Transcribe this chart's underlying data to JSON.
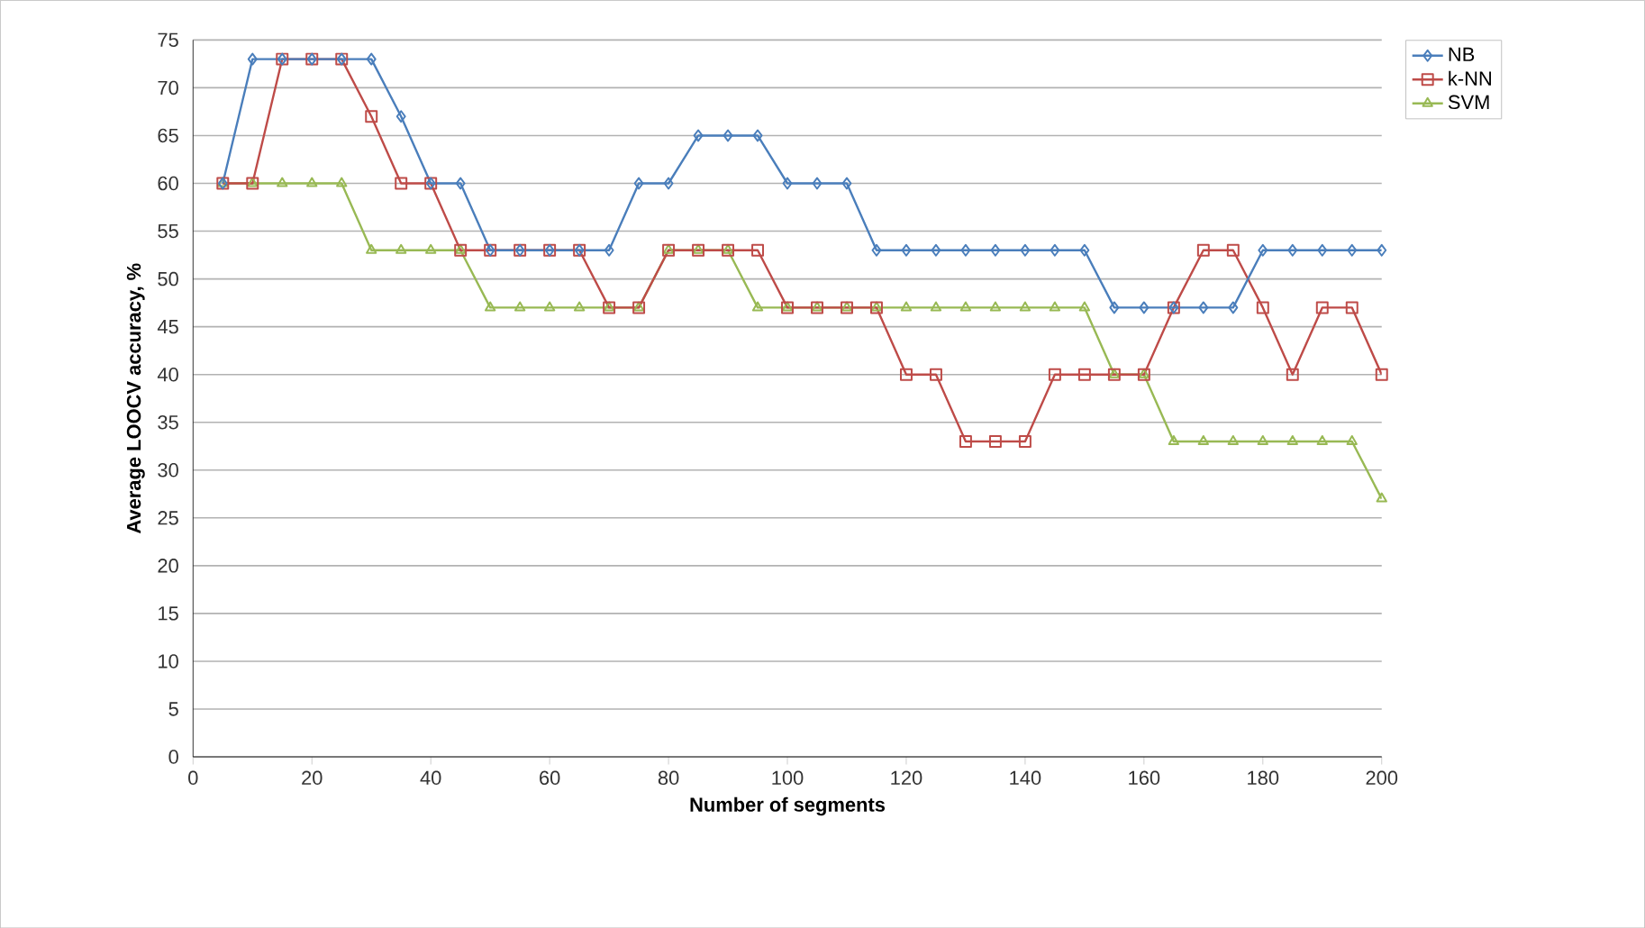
{
  "chart_data": {
    "type": "line",
    "xlabel": "Number of segments",
    "ylabel": "Average LOOCV accuracy, %",
    "x": [
      5,
      10,
      15,
      20,
      25,
      30,
      35,
      40,
      45,
      50,
      55,
      60,
      65,
      70,
      75,
      80,
      85,
      90,
      95,
      100,
      105,
      110,
      115,
      120,
      125,
      130,
      135,
      140,
      145,
      150,
      155,
      160,
      165,
      170,
      175,
      180,
      185,
      190,
      195,
      200
    ],
    "series": [
      {
        "name": "NB",
        "color": "#4a7ebb",
        "marker": "diamond",
        "values": [
          60,
          73,
          73,
          73,
          73,
          73,
          67,
          60,
          60,
          53,
          53,
          53,
          53,
          53,
          60,
          60,
          65,
          65,
          65,
          60,
          60,
          60,
          53,
          53,
          53,
          53,
          53,
          53,
          53,
          53,
          47,
          47,
          47,
          47,
          47,
          53,
          53,
          53,
          53,
          53
        ]
      },
      {
        "name": "k-NN",
        "color": "#be4b48",
        "marker": "square",
        "values": [
          60,
          60,
          73,
          73,
          73,
          67,
          60,
          60,
          53,
          53,
          53,
          53,
          53,
          47,
          47,
          53,
          53,
          53,
          53,
          47,
          47,
          47,
          47,
          40,
          40,
          33,
          33,
          33,
          40,
          40,
          40,
          40,
          47,
          53,
          53,
          47,
          40,
          47,
          47,
          40
        ]
      },
      {
        "name": "SVM",
        "color": "#98b954",
        "marker": "triangle",
        "values": [
          60,
          60,
          60,
          60,
          60,
          53,
          53,
          53,
          53,
          47,
          47,
          47,
          47,
          47,
          47,
          53,
          53,
          53,
          47,
          47,
          47,
          47,
          47,
          47,
          47,
          47,
          47,
          47,
          47,
          47,
          40,
          40,
          33,
          33,
          33,
          33,
          33,
          33,
          33,
          27
        ]
      }
    ],
    "xlim": [
      0,
      200
    ],
    "ylim": [
      0,
      75
    ],
    "xticks": [
      0,
      20,
      40,
      60,
      80,
      100,
      120,
      140,
      160,
      180,
      200
    ],
    "yticks": [
      0,
      5,
      10,
      15,
      20,
      25,
      30,
      35,
      40,
      45,
      50,
      55,
      60,
      65,
      70,
      75
    ],
    "grid": "y",
    "legend": "top right"
  }
}
